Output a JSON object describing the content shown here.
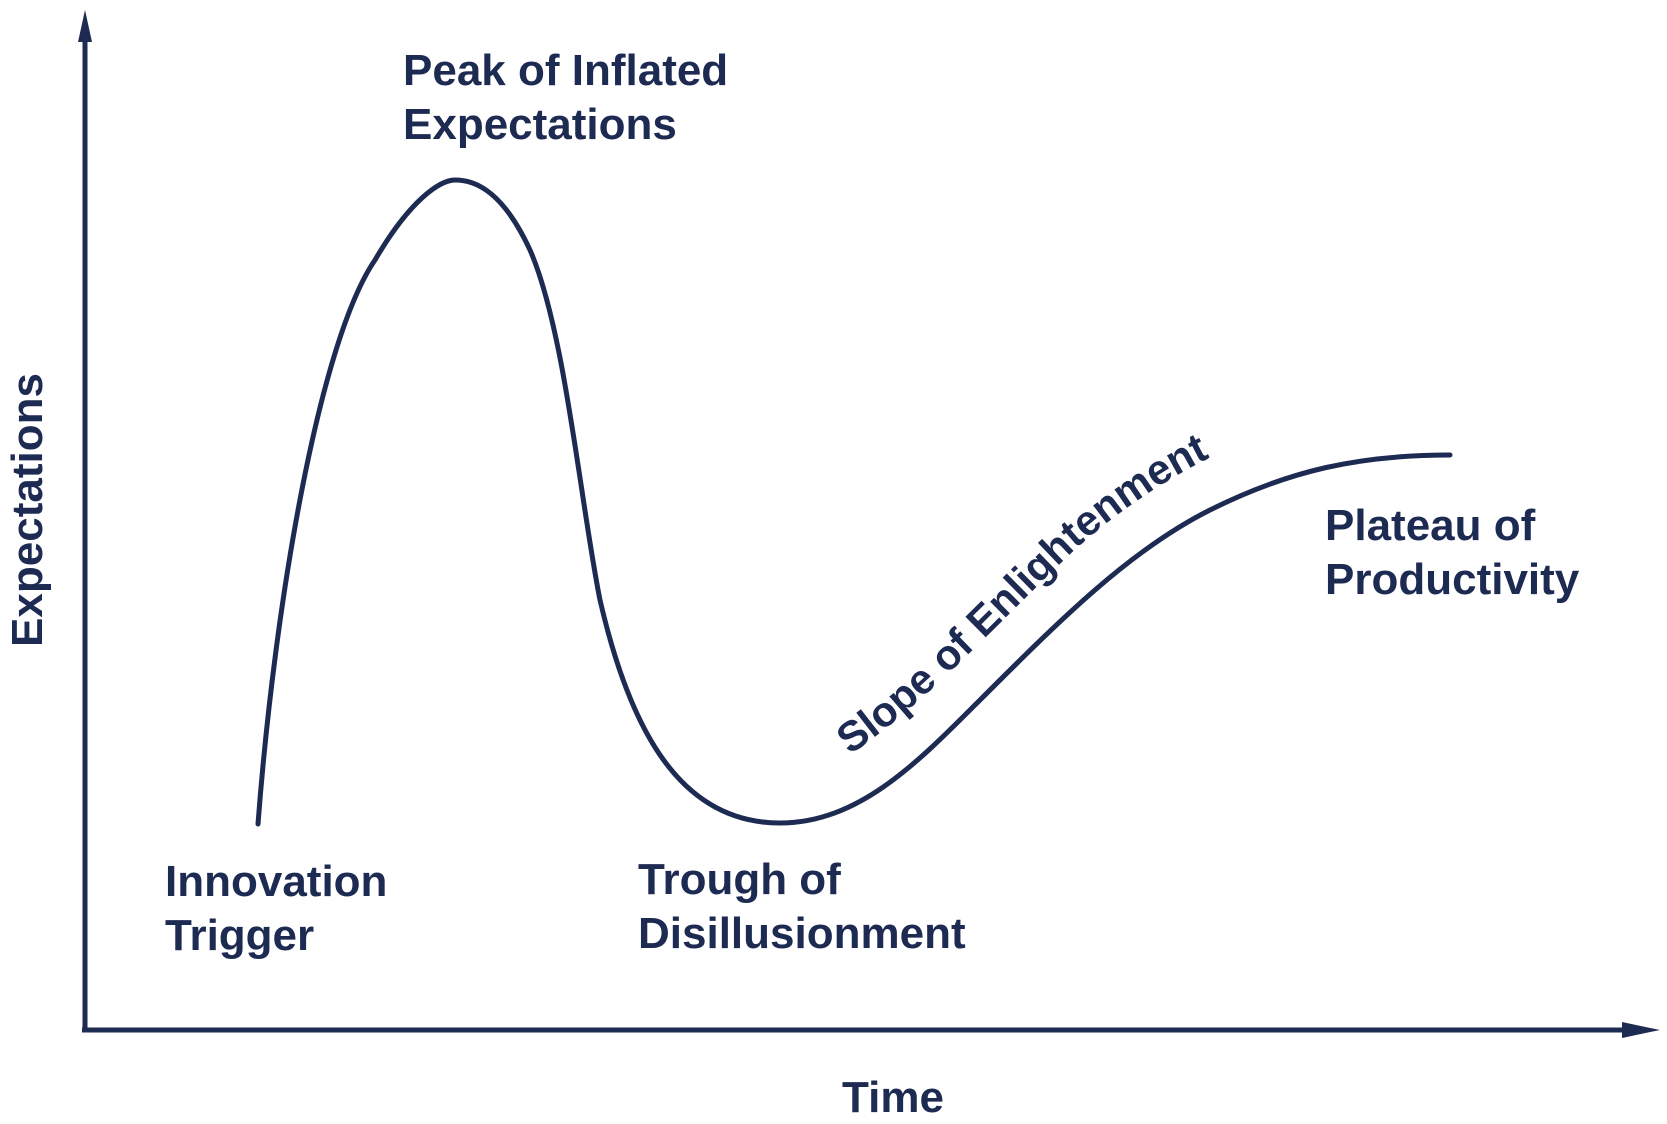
{
  "colors": {
    "ink": "#1d2a52",
    "background": "#ffffff"
  },
  "axes": {
    "x_label": "Time",
    "y_label": "Expectations"
  },
  "phases": {
    "innovation_trigger": {
      "line1": "Innovation",
      "line2": "Trigger"
    },
    "peak": {
      "line1": "Peak of Inflated",
      "line2": "Expectations"
    },
    "trough": {
      "line1": "Trough of",
      "line2": "Disillusionment"
    },
    "slope": {
      "label": "Slope of Enlightenment"
    },
    "plateau": {
      "line1": "Plateau of",
      "line2": "Productivity"
    }
  }
}
